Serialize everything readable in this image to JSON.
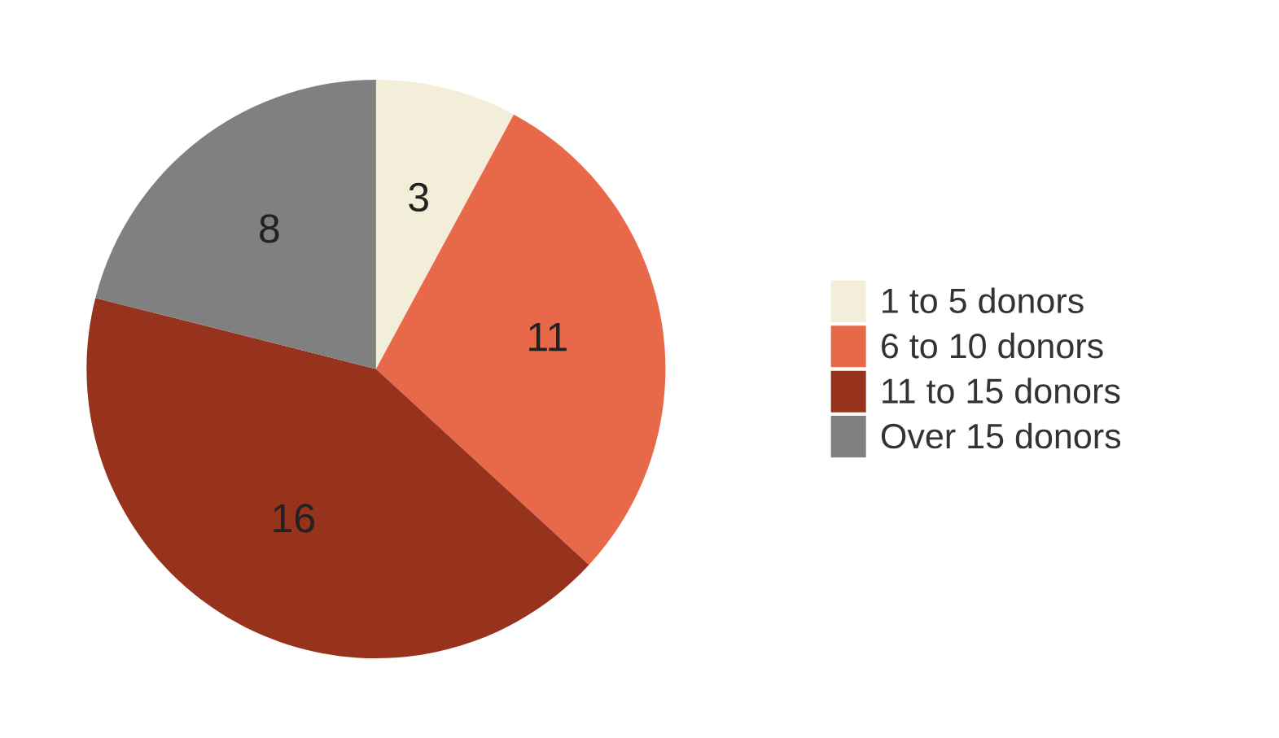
{
  "chart_data": {
    "type": "pie",
    "categories": [
      "1 to 5 donors",
      "6 to 10 donors",
      "11 to 15 donors",
      "Over 15 donors"
    ],
    "values": [
      3,
      11,
      16,
      8
    ],
    "colors": [
      "#f3eed9",
      "#e8694a",
      "#97331c",
      "#808080"
    ],
    "data_labels": true,
    "legend": "right"
  }
}
